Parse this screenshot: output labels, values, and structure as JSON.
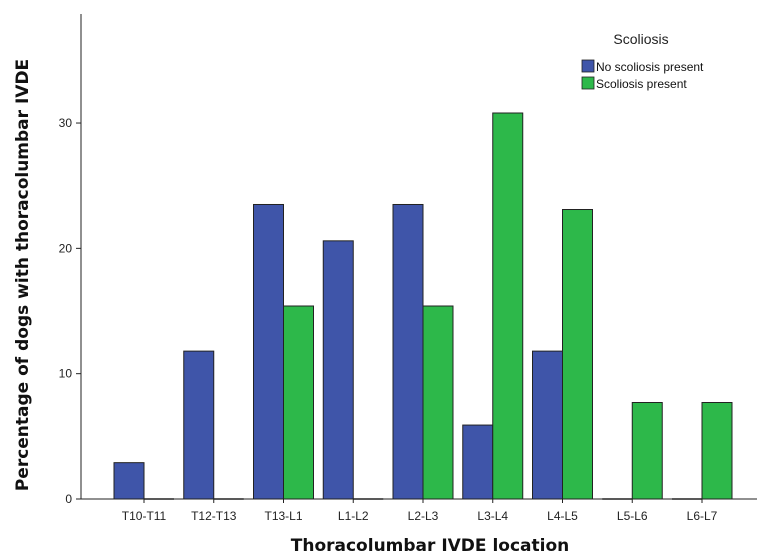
{
  "chart_data": {
    "type": "bar",
    "title": "",
    "xlabel": "Thoracolumbar IVDE location",
    "ylabel": "Percentage of dogs with thoracolumbar IVDE",
    "categories": [
      "T10-T11",
      "T12-T13",
      "T13-L1",
      "L1-L2",
      "L2-L3",
      "L3-L4",
      "L4-L5",
      "L5-L6",
      "L6-L7"
    ],
    "series": [
      {
        "name": "No scoliosis present",
        "color": "#3f55a9",
        "values": [
          2.9,
          11.8,
          23.5,
          20.6,
          23.5,
          5.9,
          11.8,
          0,
          0
        ]
      },
      {
        "name": "Scoliosis present",
        "color": "#2db84a",
        "values": [
          0,
          0,
          15.4,
          0,
          15.4,
          30.8,
          23.1,
          7.7,
          7.7
        ]
      }
    ],
    "ylim": [
      0,
      38.7
    ],
    "yticks": [
      "0",
      "10",
      "20",
      "30"
    ],
    "grid": false,
    "legend": {
      "title": "Scoliosis",
      "position": "top-right"
    }
  }
}
